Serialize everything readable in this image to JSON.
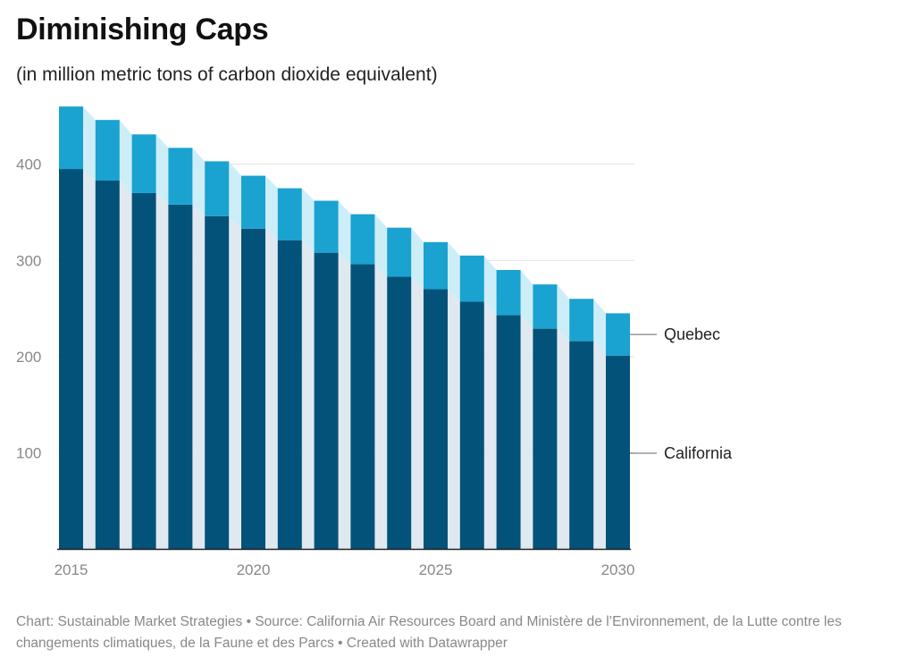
{
  "title": "Diminishing Caps",
  "subtitle": "(in million metric tons of carbon dioxide equivalent)",
  "footer": {
    "chart_credit": "Chart: Sustainable Market Strategies",
    "source": "Source: California Air Resources Board and Ministère de l’Environnement, de la Lutte contre les changements climatiques, de la Faune et des Parcs",
    "created_with": "Created with Datawrapper"
  },
  "colors": {
    "california": "#03527a",
    "quebec": "#1aa2d1",
    "california_band": "#dfe9ef",
    "quebec_band": "#cdeef8",
    "grid": "#e2e2e2",
    "axis": "#222222"
  },
  "chart_data": {
    "type": "bar",
    "stacked": true,
    "x": [
      2015,
      2016,
      2017,
      2018,
      2019,
      2020,
      2021,
      2022,
      2023,
      2024,
      2025,
      2026,
      2027,
      2028,
      2029,
      2030
    ],
    "x_tick_labels": [
      "2015",
      "2020",
      "2025",
      "2030"
    ],
    "y_ticks": [
      100,
      200,
      300,
      400
    ],
    "ylim": [
      0,
      460
    ],
    "grid": true,
    "series": [
      {
        "name": "California",
        "values": [
          395,
          383,
          370,
          358,
          346,
          333,
          321,
          308,
          296,
          283,
          270,
          257,
          243,
          229,
          216,
          201
        ]
      },
      {
        "name": "Quebec",
        "values": [
          65,
          63,
          61,
          59,
          57,
          55,
          54,
          54,
          52,
          51,
          49,
          48,
          47,
          46,
          44,
          44
        ]
      }
    ]
  }
}
